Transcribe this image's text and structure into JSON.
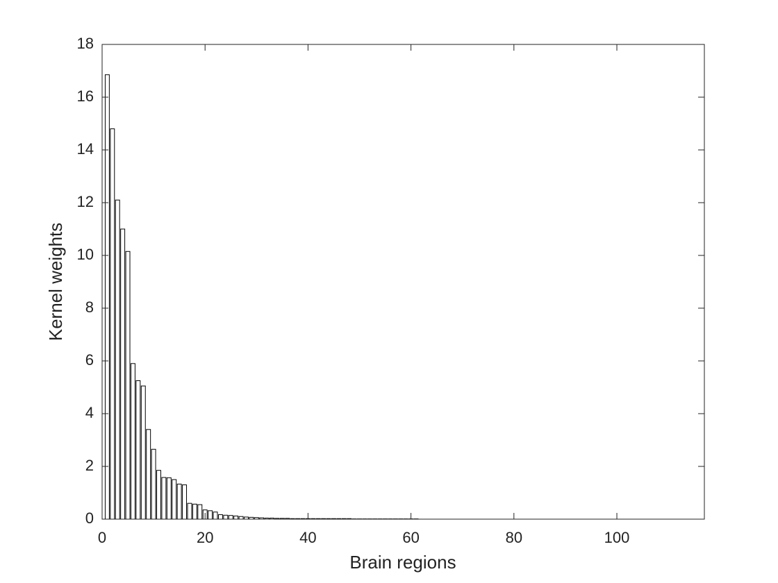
{
  "chart_data": {
    "type": "bar",
    "xlabel": "Brain regions",
    "ylabel": "Kernel weights",
    "x": [
      1,
      2,
      3,
      4,
      5,
      6,
      7,
      8,
      9,
      10,
      11,
      12,
      13,
      14,
      15,
      16,
      17,
      18,
      19,
      20,
      21,
      22,
      23,
      24,
      25,
      26,
      27,
      28,
      29,
      30,
      31,
      32,
      33,
      34,
      35,
      36,
      37,
      38,
      39,
      40,
      41,
      42,
      43,
      44,
      45,
      46,
      47,
      48,
      49,
      50,
      51,
      52,
      53,
      54,
      55,
      56,
      57,
      58,
      59,
      60,
      61
    ],
    "values": [
      16.85,
      14.8,
      12.1,
      11.0,
      10.15,
      5.9,
      5.25,
      5.05,
      3.4,
      2.65,
      1.85,
      1.58,
      1.57,
      1.5,
      1.33,
      1.3,
      0.6,
      0.57,
      0.55,
      0.35,
      0.32,
      0.27,
      0.17,
      0.15,
      0.14,
      0.12,
      0.1,
      0.08,
      0.07,
      0.06,
      0.05,
      0.04,
      0.04,
      0.03,
      0.03,
      0.03,
      0.02,
      0.02,
      0.02,
      0.02,
      0.02,
      0.02,
      0.02,
      0.02,
      0.02,
      0.02,
      0.02,
      0.02,
      0.01,
      0.01,
      0.01,
      0.01,
      0.01,
      0.01,
      0.01,
      0.01,
      0.01,
      0.01,
      0.01,
      0.01,
      0.01
    ],
    "color": "#ffffff",
    "edgecolor": "#000000",
    "xlim": [
      0,
      117
    ],
    "ylim": [
      0,
      18
    ],
    "xticks": [
      0,
      20,
      40,
      60,
      80,
      100
    ],
    "yticks": [
      0,
      2,
      4,
      6,
      8,
      10,
      12,
      14,
      16,
      18
    ],
    "grid": false
  }
}
